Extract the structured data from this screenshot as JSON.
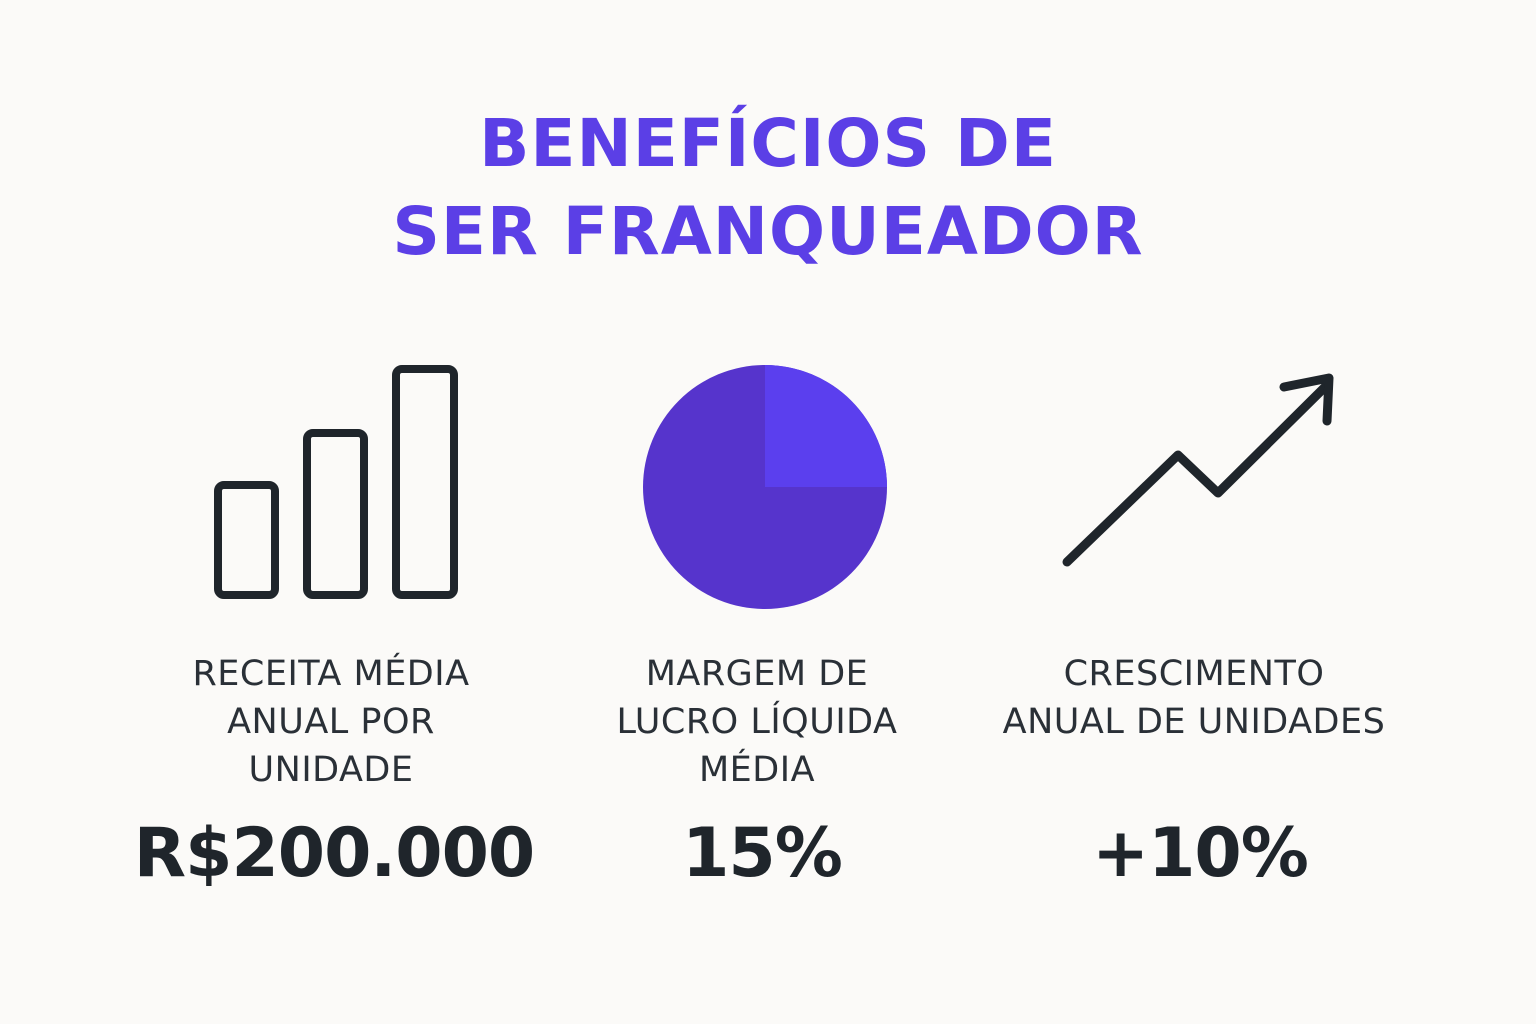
{
  "title": {
    "line1": "BENEFÍCIOS DE",
    "line2": "SER FRANQUEADOR"
  },
  "colors": {
    "accent": "#5b3fe6",
    "pie_main": "#5634cc",
    "pie_slice": "#5b3fee",
    "text": "#1f252b",
    "background": "#fbfaf8"
  },
  "metrics": [
    {
      "icon": "bar-chart-icon",
      "label_lines": [
        "RECEITA MÉDIA",
        "ANUAL POR",
        "UNIDADE"
      ],
      "value": "R$200.000"
    },
    {
      "icon": "pie-chart-icon",
      "label_lines": [
        "MARGEM DE",
        "LUCRO LÍQUIDA",
        "MÉDIA"
      ],
      "value": "15%"
    },
    {
      "icon": "trend-up-arrow-icon",
      "label_lines": [
        "CRESCIMENTO",
        "ANUAL DE UNIDADES"
      ],
      "value": "+10%"
    }
  ]
}
